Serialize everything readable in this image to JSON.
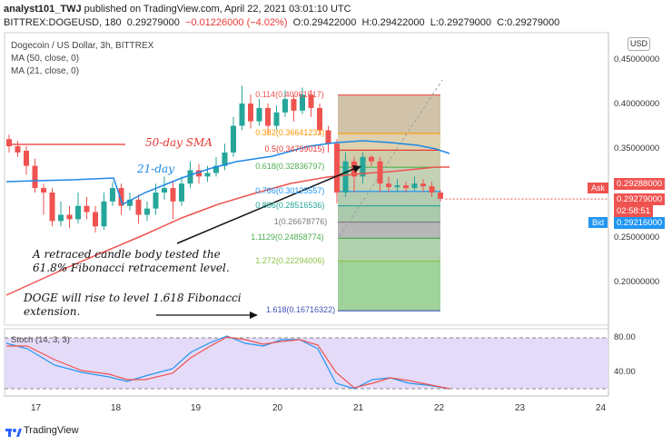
{
  "header": {
    "line1_user": "analyst101_TWJ",
    "line1_rest": "published on TradingView.com, April 22, 2021 03:01:10 UTC",
    "symbol": "BITTREX:DOGEUSD, 180",
    "last": "0.29279000",
    "change": "−0.01226000 (−4.02%)",
    "o": "O:0.29422000",
    "h": "H:0.29422000",
    "l": "L:0.29279000",
    "c": "C:0.29279000"
  },
  "legend": {
    "title": "Dogecoin / US Dollar, 3h, BITTREX",
    "ma50": "MA (50, close, 0)",
    "ma21": "MA (21, close, 0)"
  },
  "currency": "USD",
  "price_axis": [
    "0.45000000",
    "0.40000000",
    "0.35000000",
    "0.30000000",
    "0.25000000",
    "0.20000000"
  ],
  "tags": {
    "ask_label": "Ask",
    "ask_value": "0.29288000",
    "last_value": "0.29279000",
    "countdown": "02:58:51",
    "bid_label": "Bid",
    "bid_value": "0.29216000"
  },
  "x_axis": [
    "17",
    "18",
    "19",
    "20",
    "21",
    "22",
    "23",
    "24"
  ],
  "stoch": {
    "label": "Stoch (14, 3, 3)",
    "levels": [
      "80.00",
      "40.00"
    ]
  },
  "fib_levels": [
    {
      "label": "0.114(0.40961517)",
      "value": 0.40961517
    },
    {
      "label": "0.382(0.36641233)",
      "value": 0.36641233
    },
    {
      "label": "0.5(0.34759015)",
      "value": 0.34759015
    },
    {
      "label": "0.618(0.32836797)",
      "value": 0.32836797
    },
    {
      "label": "0.786(0.30125557)",
      "value": 0.30125557
    },
    {
      "label": "0.886(0.28516536)",
      "value": 0.28516536
    },
    {
      "label": "1(0.26678776)",
      "value": 0.26678776
    },
    {
      "label": "1.1129(0.24858774)",
      "value": 0.24858774
    },
    {
      "label": "1.272(0.22294006)",
      "value": 0.22294006
    },
    {
      "label": "1.618(0.16716322)",
      "value": 0.16716322
    }
  ],
  "annotations": {
    "sma50": "50-day SMA",
    "ma21": "21-day",
    "note1_l1": "A retraced candle body tested the",
    "note1_l2": "61.8% Fibonacci  retracement level.",
    "note2_l1": "DOGE will rise to level 1.618 Fibonacci",
    "note2_l2": "extension."
  },
  "footer": {
    "brand": "TradingView"
  },
  "colors": {
    "up": "#26a69a",
    "down": "#ef5350",
    "ma50": "#ef5350",
    "ma21": "#1e88e5",
    "stoch_k": "#2196f3",
    "stoch_d": "#ef5350",
    "bid": "#2196f3",
    "ask": "#ef5350"
  }
}
